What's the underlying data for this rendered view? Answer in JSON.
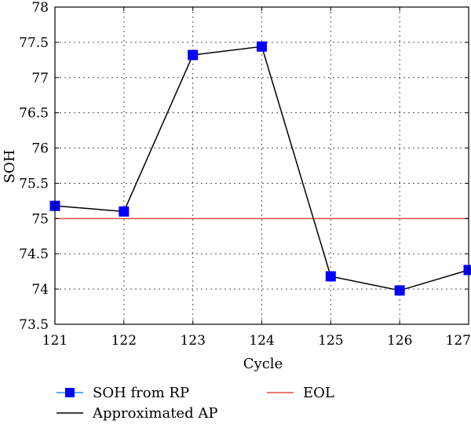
{
  "chart_data": {
    "type": "line",
    "title": "",
    "xlabel": "Cycle",
    "ylabel": "SOH",
    "xlim": [
      121,
      127
    ],
    "ylim": [
      73.5,
      78
    ],
    "x_ticks": [
      "121",
      "122",
      "123",
      "124",
      "125",
      "126",
      "127"
    ],
    "y_ticks": [
      "73.5",
      "74",
      "74.5",
      "75",
      "75.5",
      "76",
      "76.5",
      "77",
      "77.5",
      "78"
    ],
    "grid": true,
    "legend_position": "bottom",
    "series": [
      {
        "name": "SOH from RP",
        "style": "markers",
        "marker": "square",
        "color": "#0000ff",
        "x": [
          121,
          122,
          123,
          124,
          125,
          126,
          127
        ],
        "y": [
          75.18,
          75.1,
          77.32,
          77.44,
          74.18,
          73.98,
          74.27
        ]
      },
      {
        "name": "Approximated AP",
        "style": "line",
        "color": "#000000",
        "x": [
          121,
          122,
          123,
          124,
          125,
          126,
          127
        ],
        "y": [
          75.18,
          75.1,
          77.32,
          77.44,
          74.18,
          73.98,
          74.27
        ]
      },
      {
        "name": "EOL",
        "style": "line",
        "color": "#e05040",
        "x": [
          121,
          127
        ],
        "y": [
          75,
          75
        ]
      }
    ]
  }
}
